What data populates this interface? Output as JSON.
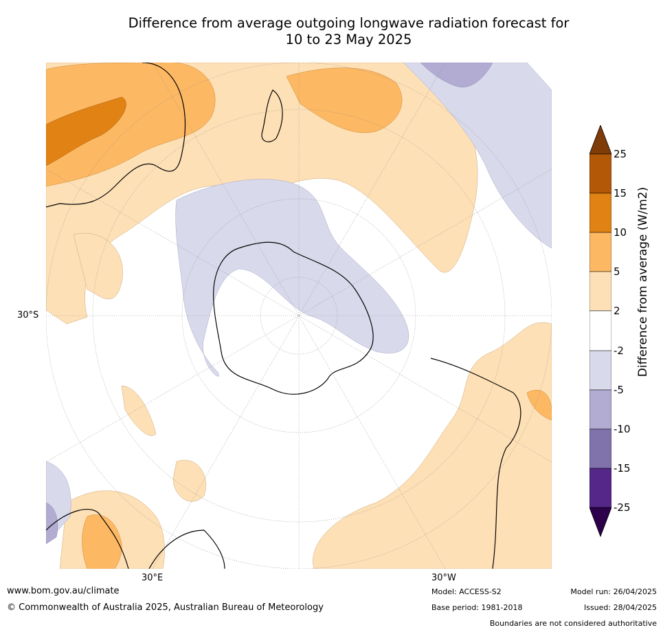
{
  "title_line1": "Difference from average outgoing longwave radiation forecast for",
  "title_line2": "10 to 23 May 2025",
  "map": {
    "projection": "south polar stereographic",
    "lat_label": "30°S",
    "lon_labels": [
      "30°E",
      "30°W"
    ],
    "land_color": "#000000",
    "graticule_color": "#888888"
  },
  "colorbar": {
    "title": "Difference from average (W/m2)",
    "ticks": [
      "25",
      "15",
      "10",
      "5",
      "2",
      "-2",
      "-5",
      "-10",
      "-15",
      "-25"
    ],
    "colors": {
      "gt25": "#7f3b08",
      "15_25": "#b35806",
      "10_15": "#e08214",
      "5_10": "#fdb863",
      "2_5": "#fee0b6",
      "m2_2": "#ffffff",
      "m5_m2": "#d8daeb",
      "m10_m5": "#b2abd2",
      "m15_m10": "#8073ac",
      "m25_m15": "#542788",
      "lt_m25": "#2d004b"
    }
  },
  "footer": {
    "website": "www.bom.gov.au/climate",
    "copyright": "© Commonwealth of Australia 2025, Australian Bureau of Meteorology",
    "model": "Model: ACCESS-S2",
    "base_period": "Base period: 1981-2018",
    "model_run": "Model run: 26/04/2025",
    "issued": "Issued: 28/04/2025",
    "disclaimer": "Boundaries are not considered authoritative"
  }
}
